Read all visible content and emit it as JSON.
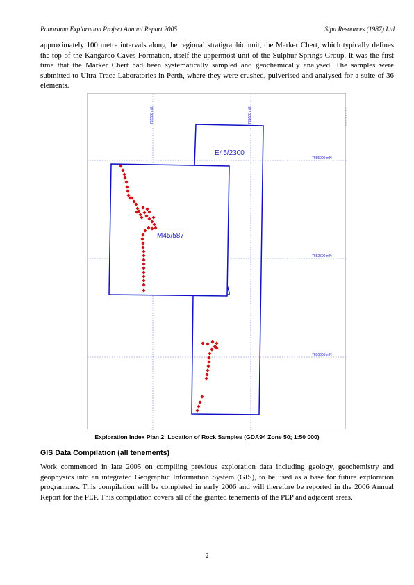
{
  "header": {
    "left": "Panorama Exploration Project Annual Report 2005",
    "right": "Sipa Resources (1987) Ltd"
  },
  "paragraphs": {
    "intro": "approximately 100 metre intervals along the regional stratigraphic unit, the Marker Chert, which typically defines the top of the Kangaroo Caves Formation, itself the uppermost unit of the Sulphur Springs Group. It was the first time that the Marker Chert had been systematically sampled and geochemically analysed. The samples were submitted to Ultra Trace Laboratories in Perth, where they were crushed, pulverised and analysed for a suite of 36 elements.",
    "gis": "Work commenced in late 2005 on compiling previous exploration data including geology, geochemistry and geophysics into an integrated Geographic Information System (GIS), to be used as a base for future exploration programmes.  This compilation will be completed in early 2006 and will therefore be reported in the 2006 Annual Report for the PEP.  This compilation covers all of the granted tenements of the PEP and adjacent areas."
  },
  "map": {
    "colors": {
      "tenement": "#1010c8",
      "grid": "#5a6ad8",
      "sample": "#cc1111",
      "label": "#2020c0"
    },
    "grid_labels": {
      "e1": "732500 mE",
      "e2": "735000 mE",
      "n1": "7655000 mN",
      "n2": "7652500 mN",
      "n3": "7650000 mN"
    },
    "tenements": {
      "e45": "E45/2300",
      "m45": "M45/587"
    }
  },
  "caption": "Exploration Index Plan 2:  Location of Rock Samples (GDA94 Zone 50; 1:50 000)",
  "section_heading": "GIS Data Compilation (all tenements)",
  "page_number": "2"
}
